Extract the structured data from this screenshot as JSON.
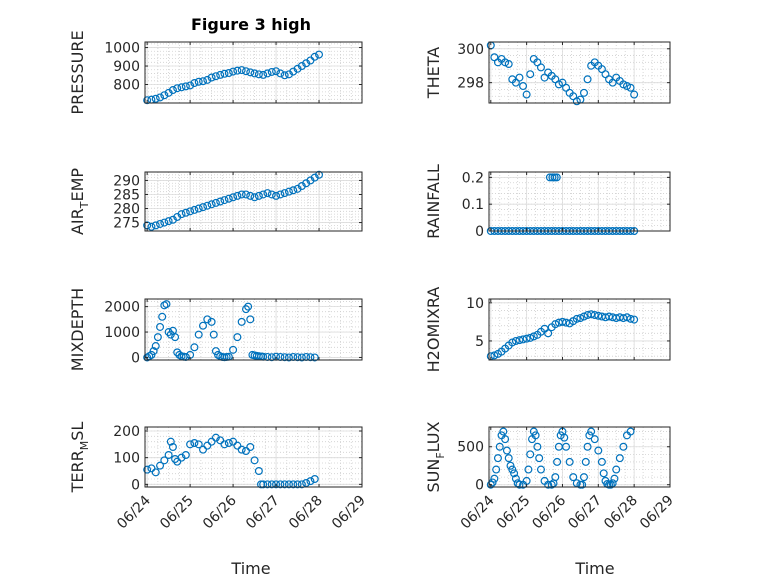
{
  "title": "Figure 3 high",
  "colors": {
    "series": "#0072BD",
    "grid": "#cfcfcf",
    "axis": "#262626"
  },
  "x_tick_labels": [
    "06/24",
    "06/25",
    "06/26",
    "06/27",
    "06/28",
    "06/29"
  ],
  "x_label": "Time",
  "chart_data": [
    {
      "type": "scatter",
      "ylabel": "PRESSURE",
      "ylim": [
        700,
        1030
      ],
      "yticks": [
        800,
        900,
        1000
      ],
      "x": [
        0,
        0.1,
        0.2,
        0.3,
        0.4,
        0.5,
        0.6,
        0.7,
        0.8,
        0.9,
        1.0,
        1.1,
        1.2,
        1.3,
        1.4,
        1.5,
        1.6,
        1.7,
        1.8,
        1.9,
        2.0,
        2.1,
        2.2,
        2.3,
        2.4,
        2.5,
        2.6,
        2.7,
        2.8,
        2.9,
        3.0,
        3.1,
        3.2,
        3.3,
        3.4,
        3.5,
        3.6,
        3.7,
        3.8,
        3.9,
        4.0
      ],
      "y": [
        715,
        718,
        723,
        730,
        742,
        755,
        770,
        780,
        785,
        790,
        795,
        808,
        815,
        818,
        825,
        838,
        845,
        852,
        858,
        862,
        870,
        875,
        878,
        872,
        866,
        860,
        855,
        852,
        860,
        868,
        872,
        860,
        850,
        855,
        870,
        885,
        900,
        915,
        930,
        950,
        962
      ]
    },
    {
      "type": "scatter",
      "ylabel": "THETA",
      "ylim": [
        296.8,
        300.4
      ],
      "yticks": [
        298,
        300
      ],
      "x": [
        0,
        0.1,
        0.2,
        0.3,
        0.4,
        0.5,
        0.6,
        0.7,
        0.8,
        0.9,
        1.0,
        1.1,
        1.2,
        1.3,
        1.4,
        1.5,
        1.6,
        1.7,
        1.8,
        1.9,
        2.0,
        2.1,
        2.2,
        2.3,
        2.4,
        2.5,
        2.6,
        2.7,
        2.8,
        2.9,
        3.0,
        3.1,
        3.2,
        3.3,
        3.4,
        3.5,
        3.6,
        3.7,
        3.8,
        3.9,
        4.0
      ],
      "y": [
        300.2,
        299.5,
        299.2,
        299.4,
        299.2,
        299.1,
        298.2,
        298.0,
        298.3,
        297.8,
        297.3,
        298.5,
        299.4,
        299.2,
        298.9,
        298.3,
        298.6,
        298.4,
        298.2,
        297.9,
        298.0,
        297.7,
        297.4,
        297.2,
        296.9,
        297.0,
        297.4,
        298.2,
        299.0,
        299.2,
        299.0,
        298.8,
        298.5,
        298.2,
        298.0,
        298.3,
        298.1,
        297.9,
        297.8,
        297.7,
        297.3
      ]
    },
    {
      "type": "scatter",
      "ylabel": "AIR_TEMP",
      "ylim": [
        272,
        293
      ],
      "yticks": [
        275,
        280,
        285,
        290
      ],
      "x": [
        0,
        0.1,
        0.2,
        0.3,
        0.4,
        0.5,
        0.6,
        0.7,
        0.8,
        0.9,
        1.0,
        1.1,
        1.2,
        1.3,
        1.4,
        1.5,
        1.6,
        1.7,
        1.8,
        1.9,
        2.0,
        2.1,
        2.2,
        2.3,
        2.4,
        2.5,
        2.6,
        2.7,
        2.8,
        2.9,
        3.0,
        3.1,
        3.2,
        3.3,
        3.4,
        3.5,
        3.6,
        3.7,
        3.8,
        3.9,
        4.0
      ],
      "y": [
        274,
        273.5,
        274,
        274.5,
        275,
        275.5,
        276,
        277,
        278,
        278.5,
        279,
        279.5,
        280,
        280.5,
        281,
        281.5,
        282,
        282.5,
        283,
        283.5,
        284,
        284.5,
        285,
        285,
        284.5,
        284,
        284.5,
        285,
        285.5,
        285,
        284.5,
        285,
        285.5,
        286,
        286.5,
        287,
        288,
        289,
        290,
        291,
        292
      ]
    },
    {
      "type": "scatter",
      "ylabel": "RAINFALL",
      "ylim": [
        0,
        0.22
      ],
      "yticks": [
        0,
        0.1,
        0.2
      ],
      "ytick_labels": [
        "0",
        "0.1",
        "0.2"
      ],
      "x": [
        0,
        0.1,
        0.2,
        0.3,
        0.4,
        0.5,
        0.6,
        0.7,
        0.8,
        0.9,
        1.0,
        1.1,
        1.2,
        1.3,
        1.4,
        1.5,
        1.6,
        1.7,
        1.8,
        1.9,
        2.0,
        2.1,
        2.2,
        2.3,
        2.4,
        2.5,
        2.6,
        2.7,
        2.8,
        2.9,
        3.0,
        3.1,
        3.2,
        3.3,
        3.4,
        3.5,
        3.6,
        3.7,
        3.8,
        3.9,
        4.0,
        1.65,
        1.72,
        1.78,
        1.84
      ],
      "y": [
        0,
        0,
        0,
        0,
        0,
        0,
        0,
        0,
        0,
        0,
        0,
        0,
        0,
        0,
        0,
        0,
        0,
        0,
        0,
        0,
        0,
        0,
        0,
        0,
        0,
        0,
        0,
        0,
        0,
        0,
        0,
        0,
        0,
        0,
        0,
        0,
        0,
        0,
        0,
        0,
        0,
        0.2,
        0.2,
        0.2,
        0.2
      ]
    },
    {
      "type": "scatter",
      "ylabel": "MIXDEPTH",
      "ylim": [
        -100,
        2300
      ],
      "yticks": [
        0,
        1000,
        2000
      ],
      "x": [
        0,
        0.05,
        0.1,
        0.15,
        0.2,
        0.25,
        0.3,
        0.35,
        0.4,
        0.45,
        0.5,
        0.55,
        0.6,
        0.65,
        0.7,
        0.75,
        0.8,
        0.85,
        0.9,
        1.0,
        1.1,
        1.2,
        1.3,
        1.4,
        1.5,
        1.55,
        1.6,
        1.65,
        1.7,
        1.75,
        1.8,
        1.85,
        1.9,
        2.0,
        2.1,
        2.2,
        2.3,
        2.35,
        2.4,
        2.45,
        2.5,
        2.55,
        2.6,
        2.65,
        2.7,
        2.8,
        2.9,
        3.0,
        3.1,
        3.2,
        3.3,
        3.4,
        3.5,
        3.6,
        3.7,
        3.8,
        3.9
      ],
      "y": [
        0,
        50,
        100,
        250,
        450,
        800,
        1200,
        1600,
        2050,
        2100,
        1000,
        900,
        1050,
        800,
        200,
        100,
        50,
        30,
        20,
        100,
        400,
        900,
        1250,
        1500,
        1400,
        900,
        250,
        100,
        50,
        20,
        10,
        20,
        30,
        300,
        800,
        1400,
        1900,
        2000,
        1500,
        100,
        80,
        60,
        50,
        40,
        30,
        20,
        10,
        30,
        20,
        10,
        0,
        20,
        10,
        0,
        20,
        10,
        0
      ]
    },
    {
      "type": "scatter",
      "ylabel": "H2OMIXRA",
      "ylim": [
        2.5,
        10.5
      ],
      "yticks": [
        5,
        10
      ],
      "x": [
        0,
        0.1,
        0.2,
        0.3,
        0.4,
        0.5,
        0.6,
        0.7,
        0.8,
        0.9,
        1.0,
        1.1,
        1.2,
        1.3,
        1.4,
        1.5,
        1.6,
        1.7,
        1.8,
        1.9,
        2.0,
        2.1,
        2.2,
        2.3,
        2.4,
        2.5,
        2.6,
        2.7,
        2.8,
        2.9,
        3.0,
        3.1,
        3.2,
        3.3,
        3.4,
        3.5,
        3.6,
        3.7,
        3.8,
        3.9,
        4.0
      ],
      "y": [
        3.0,
        3.1,
        3.3,
        3.6,
        4.0,
        4.4,
        4.8,
        5.0,
        5.1,
        5.2,
        5.3,
        5.4,
        5.6,
        5.8,
        6.2,
        6.6,
        6.0,
        6.8,
        7.2,
        7.4,
        7.5,
        7.4,
        7.3,
        7.6,
        7.9,
        8.0,
        8.2,
        8.4,
        8.5,
        8.4,
        8.3,
        8.2,
        8.1,
        8.2,
        8.1,
        8.0,
        8.1,
        8.0,
        8.1,
        7.9,
        7.8
      ]
    },
    {
      "type": "scatter",
      "ylabel": "TERR_MSL",
      "ylim": [
        -10,
        215
      ],
      "yticks": [
        0,
        100,
        200
      ],
      "x": [
        0,
        0.1,
        0.2,
        0.3,
        0.4,
        0.5,
        0.55,
        0.6,
        0.65,
        0.7,
        0.8,
        0.9,
        1.0,
        1.1,
        1.2,
        1.3,
        1.4,
        1.5,
        1.6,
        1.7,
        1.8,
        1.9,
        2.0,
        2.1,
        2.2,
        2.3,
        2.4,
        2.5,
        2.6,
        2.65,
        2.7,
        2.8,
        2.9,
        3.0,
        3.1,
        3.2,
        3.3,
        3.4,
        3.5,
        3.6,
        3.7,
        3.8,
        3.9
      ],
      "y": [
        55,
        60,
        45,
        70,
        90,
        110,
        160,
        140,
        95,
        85,
        100,
        110,
        150,
        155,
        150,
        130,
        145,
        160,
        175,
        165,
        150,
        155,
        160,
        145,
        130,
        125,
        140,
        90,
        50,
        0,
        0,
        0,
        0,
        0,
        0,
        0,
        0,
        0,
        0,
        0,
        5,
        12,
        20
      ]
    },
    {
      "type": "scatter",
      "ylabel": "SUN_FLUX",
      "ylim": [
        -30,
        760
      ],
      "yticks": [
        0,
        500
      ],
      "x": [
        0,
        0.05,
        0.1,
        0.15,
        0.2,
        0.25,
        0.3,
        0.35,
        0.4,
        0.45,
        0.5,
        0.55,
        0.6,
        0.65,
        0.7,
        0.75,
        0.8,
        0.9,
        1.0,
        1.05,
        1.1,
        1.15,
        1.2,
        1.25,
        1.3,
        1.35,
        1.4,
        1.5,
        1.6,
        1.7,
        1.75,
        1.8,
        1.85,
        1.9,
        1.95,
        2.0,
        2.05,
        2.1,
        2.2,
        2.3,
        2.4,
        2.5,
        2.55,
        2.6,
        2.65,
        2.7,
        2.75,
        2.8,
        2.9,
        3.0,
        3.1,
        3.15,
        3.2,
        3.25,
        3.3,
        3.35,
        3.4,
        3.45,
        3.5,
        3.6,
        3.7,
        3.8,
        3.9
      ],
      "y": [
        0,
        30,
        80,
        200,
        350,
        500,
        650,
        700,
        600,
        450,
        350,
        250,
        200,
        150,
        80,
        20,
        0,
        0,
        50,
        200,
        400,
        600,
        700,
        650,
        500,
        350,
        200,
        50,
        0,
        0,
        20,
        100,
        300,
        500,
        650,
        700,
        620,
        500,
        300,
        100,
        20,
        0,
        0,
        100,
        300,
        500,
        650,
        700,
        600,
        450,
        300,
        150,
        50,
        10,
        0,
        0,
        20,
        80,
        200,
        350,
        500,
        650,
        700
      ]
    }
  ]
}
